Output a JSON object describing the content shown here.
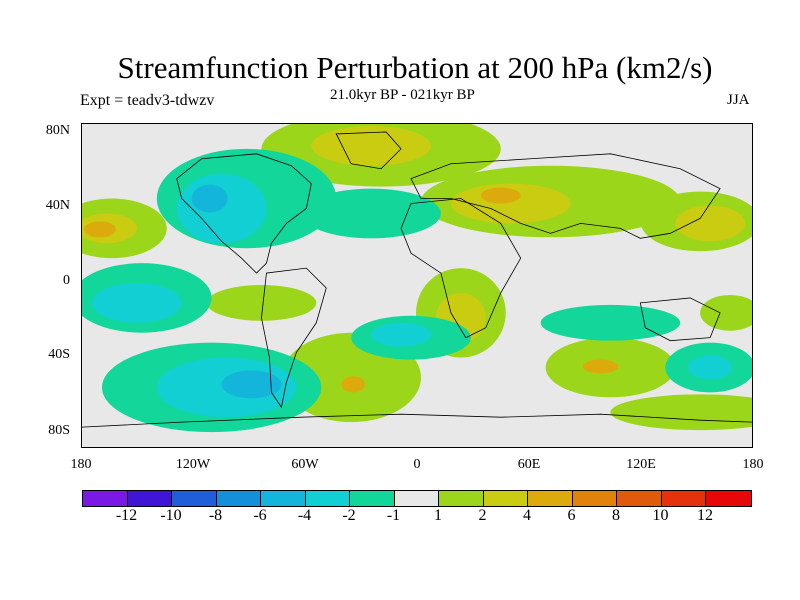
{
  "title": "Streamfunction Perturbation at 200 hPa (km2/s)",
  "experiment": "Expt = teadv3-tdwzv",
  "period": "21.0kyr BP - 021kyr BP",
  "season": "JJA",
  "lat_labels": [
    "80N",
    "40N",
    "0",
    "40S",
    "80S"
  ],
  "lon_labels": [
    "180",
    "120W",
    "60W",
    "0",
    "60E",
    "120E",
    "180"
  ],
  "colorbar": {
    "labels": [
      "-12",
      "-10",
      "-8",
      "-6",
      "-4",
      "-2",
      "-1",
      "1",
      "2",
      "4",
      "6",
      "8",
      "10",
      "12"
    ],
    "colors": [
      "#7a18e6",
      "#3f16d8",
      "#1f5ed6",
      "#148fd9",
      "#14b5da",
      "#12cfd4",
      "#12d69a",
      "#e8e8e8",
      "#9cd61a",
      "#c9cc10",
      "#dcaa0c",
      "#e0820c",
      "#e05a0c",
      "#e6320c",
      "#e60808"
    ]
  },
  "map_fill": {
    "background": "#e8e8e8",
    "neg_weak": "#12d69a",
    "neg_mid": "#12cfd4",
    "neg_strong": "#14b5da",
    "pos_weak": "#9cd61a",
    "pos_mid": "#c9cc10",
    "pos_strong": "#dcaa0c"
  }
}
